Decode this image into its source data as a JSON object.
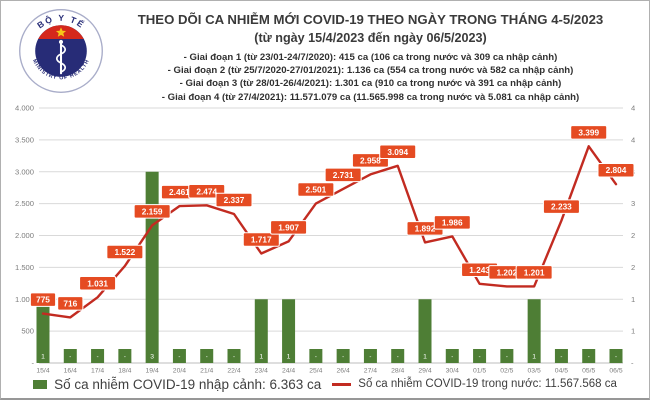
{
  "header": {
    "title": "THEO DÕI CA NHIỄM MỚI COVID-19 THEO NGÀY TRONG THÁNG 4-5/2023",
    "subtitle": "(từ ngày 15/4/2023 đến ngày 06/5/2023)",
    "phases": [
      "- Giai đoạn 1 (từ 23/01-24/7/2020): 415 ca (106 ca trong nước và 309 ca nhập cảnh)",
      "- Giai đoạn 2 (từ 25/7/2020-27/01/2021): 1.136 ca (554 ca trong nước và 582 ca nhập cảnh)",
      "- Giai đoạn 3 (từ 28/01-26/4/2021): 1.301 ca (910 ca trong nước và 391 ca nhập cảnh)",
      "- Giai đoạn 4 (từ 27/4/2021): 11.571.079 ca (11.565.998 ca trong nước và 5.081 ca nhập cảnh)"
    ]
  },
  "logo": {
    "top": "BỘ Y TẾ",
    "bottom": "MINISTRY OF HEALTH"
  },
  "chart_data": {
    "type": "combo-bar-line",
    "categories": [
      "15/4",
      "16/4",
      "17/4",
      "18/4",
      "19/4",
      "20/4",
      "21/4",
      "22/4",
      "23/4",
      "24/4",
      "25/4",
      "26/4",
      "27/4",
      "28/4",
      "29/4",
      "30/4",
      "01/5",
      "02/5",
      "03/5",
      "04/5",
      "05/5",
      "06/5"
    ],
    "series": [
      {
        "name": "Số ca nhiễm COVID-19 nhập cảnh",
        "type": "bar",
        "axis": "right",
        "values": [
          1,
          0,
          0,
          0,
          3,
          0,
          0,
          0,
          1,
          1,
          0,
          0,
          0,
          0,
          1,
          0,
          0,
          0,
          1,
          0,
          0,
          0
        ],
        "labels": [
          "1",
          "-",
          "-",
          "-",
          "3",
          "-",
          "-",
          "-",
          "1",
          "1",
          "-",
          "-",
          "-",
          "-",
          "1",
          "-",
          "-",
          "-",
          "1",
          "-",
          "-",
          "-"
        ],
        "total": "6.363 ca"
      },
      {
        "name": "Số ca nhiễm COVID-19 trong nước",
        "type": "line",
        "axis": "left",
        "values": [
          775,
          716,
          1031,
          1522,
          2159,
          2461,
          2474,
          2337,
          1717,
          1907,
          2501,
          2731,
          2958,
          3094,
          1892,
          1986,
          1243,
          1202,
          1201,
          2233,
          3399,
          2804
        ],
        "labels": [
          "775",
          "716",
          "1.031",
          "1.522",
          "2.159",
          "2.461",
          "2.474",
          "2.337",
          "1.717",
          "1.907",
          "2.501",
          "2.731",
          "2.958",
          "3.094",
          "1.892",
          "1.986",
          "1.243",
          "1.202",
          "1.201",
          "2.233",
          "3.399",
          "2.804"
        ],
        "total": "11.567.568 ca"
      }
    ],
    "left_axis": {
      "min": 0,
      "max": 4000,
      "step": 500,
      "tick_labels_top_down": [
        "4.000",
        "3.500",
        "3.000",
        "2.500",
        "2.000",
        "1.500",
        "1.000",
        "500",
        "-"
      ]
    },
    "right_axis": {
      "min": 0,
      "max": 4,
      "tick_labels_top_down": [
        "4",
        "4",
        "3",
        "3",
        "2",
        "2",
        "1",
        "1",
        "-"
      ]
    },
    "grid": true,
    "legend_position": "bottom"
  },
  "legend": {
    "imported": "Số ca nhiễm COVID-19 nhập cảnh: 6.363 ca",
    "domestic": "Số ca nhiễm COVID-19 trong nước: 11.567.568 ca"
  },
  "colors": {
    "bar_green": "#4e7e35",
    "line_red": "#c22b21",
    "label_bg": "#e54b22",
    "label_text": "#ffffff",
    "grid": "#d9d9d9",
    "axis_line": "#bdbdbd",
    "axis_text": "#7c7c7c",
    "legend_text": "#404040",
    "logo_navy": "#272c77",
    "logo_red": "#d5281c",
    "logo_gold": "#f7c518"
  }
}
